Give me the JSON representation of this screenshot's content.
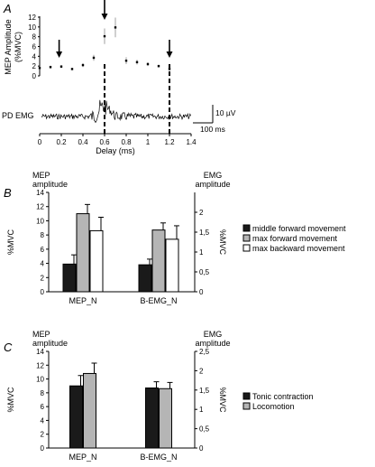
{
  "chart_data": [
    {
      "panel": "A",
      "type": "scatter",
      "ylabel": "MEP Amplitude",
      "ylabel2": "(%MVC)",
      "yticks": [
        0,
        2,
        4,
        6,
        8,
        10,
        12
      ],
      "ylim": [
        0,
        12
      ],
      "xlabel": "Delay (ms)",
      "xticks": [
        "0",
        "0.2",
        "0.4",
        "0.6",
        "0.8",
        "1",
        "1.2",
        "1.4"
      ],
      "xlim": [
        0,
        1.4
      ],
      "mep_points": [
        {
          "x": 0.0,
          "y": 1.6,
          "err": 0.3
        },
        {
          "x": 0.1,
          "y": 1.8,
          "err": 0.3
        },
        {
          "x": 0.2,
          "y": 1.9,
          "err": 0.3
        },
        {
          "x": 0.3,
          "y": 1.4,
          "err": 0.2
        },
        {
          "x": 0.4,
          "y": 2.2,
          "err": 0.4
        },
        {
          "x": 0.5,
          "y": 3.7,
          "err": 0.6
        },
        {
          "x": 0.6,
          "y": 8.1,
          "err": 1.6
        },
        {
          "x": 0.7,
          "y": 9.9,
          "err": 2.0
        },
        {
          "x": 0.8,
          "y": 3.1,
          "err": 0.7
        },
        {
          "x": 0.9,
          "y": 2.8,
          "err": 0.5
        },
        {
          "x": 1.0,
          "y": 2.4,
          "err": 0.4
        },
        {
          "x": 1.1,
          "y": 2.0,
          "err": 0.3
        },
        {
          "x": 1.2,
          "y": 1.4,
          "err": 0.3
        }
      ],
      "arrows_at": [
        0.18,
        0.6,
        1.2
      ],
      "dashed_lines_at": [
        0.6,
        1.2
      ],
      "emg_trace_label": "PD EMG",
      "scale_bar_vertical": "10 µV",
      "scale_bar_horizontal": "100 ms"
    },
    {
      "panel": "B",
      "type": "bar",
      "title_left": "MEP",
      "title_left2": "amplitude",
      "title_right": "EMG",
      "title_right2": "amplitude",
      "ylabel": "%MVC",
      "ylabel_right": "%MVC",
      "ylim": [
        0,
        14
      ],
      "yticks": [
        "0",
        "2",
        "4",
        "6",
        "8",
        "10",
        "12",
        "14"
      ],
      "ylim_right": [
        0,
        2.5
      ],
      "yticks_right": [
        "0",
        "0,5",
        "1",
        "1,5",
        "2"
      ],
      "categories": [
        "MEP_N",
        "B-EMG_N"
      ],
      "series": [
        {
          "name": "middle forward movement",
          "color": "#1a1a1a",
          "values": [
            3.9,
            3.8
          ],
          "errors": [
            1.3,
            0.8
          ]
        },
        {
          "name": "max forward movement",
          "color": "#b5b5b5",
          "values": [
            11.0,
            8.7
          ],
          "errors": [
            1.3,
            1.0
          ]
        },
        {
          "name": "max backward  movement",
          "color": "#ffffff",
          "values": [
            8.6,
            7.4
          ],
          "errors": [
            1.9,
            1.9
          ]
        }
      ]
    },
    {
      "panel": "C",
      "type": "bar",
      "title_left": "MEP",
      "title_left2": "amplitude",
      "title_right": "EMG",
      "title_right2": "amplitude",
      "ylabel": "%MVC",
      "ylabel_right": "%MVC",
      "ylim": [
        0,
        14
      ],
      "yticks": [
        "0",
        "2",
        "4",
        "6",
        "8",
        "10",
        "12",
        "14"
      ],
      "ylim_right": [
        0,
        2.5
      ],
      "yticks_right": [
        "0",
        "0,5",
        "1",
        "1,5",
        "2",
        "2,5"
      ],
      "categories": [
        "MEP_N",
        "B-EMG_N"
      ],
      "series": [
        {
          "name": "Tonic contraction",
          "color": "#1a1a1a",
          "values": [
            9.0,
            8.7
          ],
          "errors": [
            1.5,
            0.9
          ]
        },
        {
          "name": "Locomotion",
          "color": "#b5b5b5",
          "values": [
            10.8,
            8.6
          ],
          "errors": [
            1.5,
            0.9
          ]
        }
      ]
    }
  ]
}
